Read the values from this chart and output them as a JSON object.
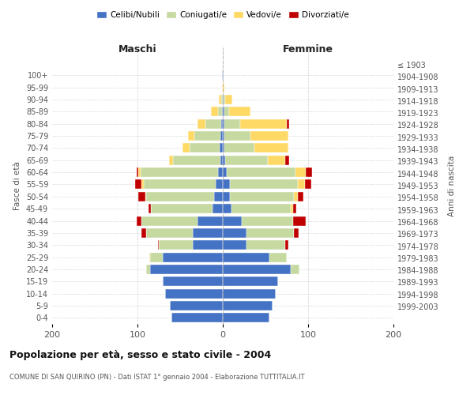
{
  "age_groups": [
    "0-4",
    "5-9",
    "10-14",
    "15-19",
    "20-24",
    "25-29",
    "30-34",
    "35-39",
    "40-44",
    "45-49",
    "50-54",
    "55-59",
    "60-64",
    "65-69",
    "70-74",
    "75-79",
    "80-84",
    "85-89",
    "90-94",
    "95-99",
    "100+"
  ],
  "birth_years": [
    "1999-2003",
    "1994-1998",
    "1989-1993",
    "1984-1988",
    "1979-1983",
    "1974-1978",
    "1969-1973",
    "1964-1968",
    "1959-1963",
    "1954-1958",
    "1949-1953",
    "1944-1948",
    "1939-1943",
    "1934-1938",
    "1929-1933",
    "1924-1928",
    "1919-1923",
    "1914-1918",
    "1909-1913",
    "1904-1908",
    "≤ 1903"
  ],
  "colors": {
    "celibi": "#4472C4",
    "coniugati": "#C5D9A0",
    "vedovi": "#FFD966",
    "divorziati": "#C00000"
  },
  "maschi": {
    "celibi": [
      60,
      62,
      68,
      70,
      85,
      70,
      35,
      35,
      30,
      12,
      10,
      8,
      6,
      3,
      4,
      3,
      2,
      1,
      0,
      0,
      1
    ],
    "coniugati": [
      0,
      0,
      0,
      0,
      5,
      15,
      40,
      55,
      65,
      72,
      80,
      85,
      90,
      55,
      35,
      30,
      18,
      5,
      2,
      0,
      0
    ],
    "vedovi": [
      0,
      0,
      0,
      0,
      0,
      1,
      0,
      0,
      0,
      0,
      1,
      2,
      3,
      5,
      8,
      8,
      10,
      8,
      3,
      1,
      0
    ],
    "divorziati": [
      0,
      0,
      0,
      0,
      0,
      0,
      1,
      5,
      6,
      3,
      8,
      8,
      2,
      0,
      0,
      0,
      0,
      0,
      0,
      0,
      0
    ]
  },
  "femmine": {
    "celibi": [
      55,
      58,
      62,
      65,
      80,
      55,
      28,
      28,
      22,
      10,
      8,
      8,
      5,
      3,
      2,
      2,
      2,
      2,
      1,
      0,
      1
    ],
    "coniugati": [
      0,
      0,
      0,
      0,
      10,
      20,
      45,
      55,
      60,
      70,
      75,
      80,
      80,
      50,
      35,
      30,
      18,
      5,
      2,
      0,
      0
    ],
    "vedovi": [
      0,
      0,
      0,
      0,
      0,
      0,
      0,
      0,
      0,
      2,
      5,
      8,
      12,
      20,
      40,
      45,
      55,
      25,
      8,
      2,
      0
    ],
    "divorziati": [
      0,
      0,
      0,
      0,
      0,
      0,
      4,
      6,
      15,
      4,
      6,
      8,
      8,
      5,
      0,
      0,
      3,
      0,
      0,
      0,
      0
    ]
  },
  "title": "Popolazione per età, sesso e stato civile - 2004",
  "subtitle": "COMUNE DI SAN QUIRINO (PN) - Dati ISTAT 1° gennaio 2004 - Elaborazione TUTTITALIA.IT",
  "xlabel_maschi": "Maschi",
  "xlabel_femmine": "Femmine",
  "ylabel_left": "Fasce di età",
  "ylabel_right": "Anni di nascita",
  "xlim": 200,
  "background_color": "#ffffff",
  "grid_color": "#cccccc"
}
